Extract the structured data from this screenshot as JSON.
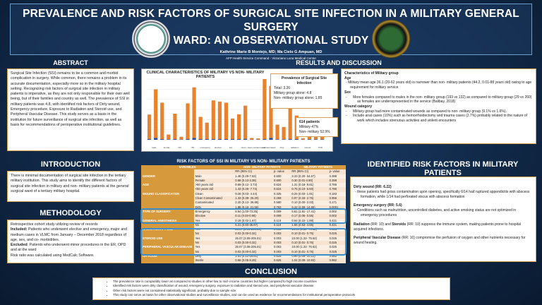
{
  "header": {
    "title_line1": "PREVALENCE AND RISK FACTORS OF SURGICAL SITE INFECTION IN A MILITARY GENERAL SURGERY",
    "title_line2": "WARD: AN OBSERVATIONAL STUDY",
    "authors": "Kathrine Marie B Montejo, MD; Ma Cielo G Ampuan, MD",
    "affiliation": "AFP Health Service Command - Victoriano Luna Medical Center"
  },
  "abstract": {
    "heading": "ABSTRACT",
    "text": "Surgical Site Infection (SSI) remains to be a common and morbid complication in surgery. While common, there remains a problem in its accurate documentation, especially more so in the military hospital setting. Recognizing risk factors of surgical site infection in military patients is imperative, as they are not only responsible for their own well being, but of their families and country as well. The prevalence of SSI in military patients was 4.8, with identified risk factors of Dirty wound, Emergency procedure, Exposure to Radiation and Steroid use, and Peripheral Vascular Disease. This study serves as a basis in the institution for future surveillance of surgical site infection, as well as basis for recommendations of perioperative institutional guidelines."
  },
  "introduction": {
    "heading": "INTRODUCTION",
    "text": "There is minimal documentation of surgical site infection in the tertiary military institution. This study aims to identify the different factors of surgical site infection in military and non- military patients at the general surgical ward of a tertiary military hospital."
  },
  "methodology": {
    "heading": "METHODOLOGY",
    "line1": "Retrospective cohort study utilizing review of records",
    "included_label": "Included:",
    "included": " Patients who underwent elective and emergency, major and medium cases in VLMC from January – December 2018 regardless of age, sex, and co- morbidities.",
    "excluded_label": "Excluded",
    "excluded": ": Patients who underwent minor procedures in the ER, OPD and at the ward",
    "line4": "Risk ratio was calculated using MedCalc Software."
  },
  "results": {
    "heading": "RESULTS AND DISCUSSION"
  },
  "chart_data": {
    "type": "bar",
    "stacked": true,
    "title": "CLINICAL CHARACTERISTICS OF MILITARY VS NON- MILITARY PATIENTS",
    "colors": {
      "ssi": "#2a4d9a",
      "no_ssi": "#e8822c"
    },
    "categories": [
      "male",
      "female",
      "<50",
      ">50",
      "emergency",
      "elective",
      "GA",
      "clean",
      "clean contaminated",
      "contaminated",
      "dirty",
      "radiation",
      "steroid",
      "PVD"
    ],
    "values_total": [
      110,
      220,
      162,
      23,
      114,
      13,
      159,
      229,
      100,
      75,
      172,
      167,
      162,
      93,
      111,
      149,
      8,
      6,
      265,
      235,
      66,
      56,
      164,
      106,
      7,
      47,
      33,
      33
    ],
    "values_ssi": [
      3,
      8,
      3,
      2,
      3,
      1,
      3,
      8,
      3,
      3,
      3,
      3,
      3,
      3,
      3,
      4,
      1,
      1,
      3,
      8,
      2,
      2,
      3,
      3,
      1,
      2,
      2,
      2
    ]
  },
  "prevalence": {
    "title": "Prevalence of Surgical Site Infection",
    "total": "Total: 3.26",
    "military": "Military group alone: 4.8",
    "nonmilitary": "Non- military group alone: 1.85"
  },
  "patients": {
    "title": "614 patients",
    "military": "Military 47%",
    "nonmilitary": "Non- military 52.9%"
  },
  "characteristics": {
    "title": "Characteristics of Military group",
    "age_h": "Age",
    "age": "Military mean age 36.1 (20-62 years old) is narrower than non- military patients (44.2, 0.01-88 years old) owing to age requirement for military service",
    "sex_h": "Sex",
    "sex": "More females compared to males in the non- military group (193 vs 132) as compared to military group (29 vs 260) as females are underrepresented in the service (Balibay, 2018)",
    "wound_h": "Wound category",
    "wound1": "Military group had more contaminated wounds as compared to non- military group (9.1% vs 1.6%).",
    "wound2": "Include anal cases (10%) such as hemorrhoidectomy and trauma cases (2.7%) probably related to the nature of work which includes strenuous activities and violent encounters"
  },
  "table": {
    "title": "RISK FACTORS OF SSI IN MILITARY VS NON- MILITARY PATIENTS",
    "col_variables": "VARIABLES",
    "col_nonmil": "NON- MILITARY PATIENTS",
    "col_mil": "MILITARY PATIENTS",
    "rr": "RR (95% CI)",
    "p": "p- value",
    "rows": [
      {
        "group": "GENDER",
        "var": "Male",
        "nrr": "1.46 (0.29-7.53)",
        "np": "0.600",
        "mrr": "3.33 (0.20- 54.67)",
        "mp": "0.398"
      },
      {
        "group": "",
        "var": "Female",
        "nrr": "0.68 (0.13-3.39)",
        "np": "0.600",
        "mrr": "0.30 (0.01-4.90)",
        "mp": "0.398"
      },
      {
        "group": "AGE",
        "var": ">50 years old",
        "nrr": "0.69 (0.12- 3.73)",
        "np": "0.624",
        "mrr": "1.31 (0.18- 9.61)",
        "mp": "0.786"
      },
      {
        "group": "",
        "var": "<50 years old",
        "nrr": "1.43 (0.26- 7.74)",
        "np": "0.624",
        "mrr": "0.76 (0.10- 5.60)",
        "mp": "0.786"
      },
      {
        "group": "WOUND CLASSIFICATION",
        "var": "Clean",
        "nrr": "0.28 (0.03- 4.44)",
        "np": "0.325",
        "mrr": "0.25 (0.03- 1.91)",
        "mp": "0.183"
      },
      {
        "group": "",
        "var": "Clean Contaminated",
        "nrr": "1.33 (0.39- 26.20)",
        "np": "0.269",
        "mrr": "0.97 (0.33- 2.75)",
        "mp": "0.956"
      },
      {
        "group": "",
        "var": "Contaminated",
        "nrr": "2.20 (0.13- 36.85)",
        "np": "0.580",
        "mrr": "0.10 (0.00- 2.03)",
        "mp": "0.171"
      },
      {
        "group": "",
        "var": "Dirty",
        "nrr": "1.88 (0.16- 21.56)",
        "np": "0.763",
        "mrr": "6.22 (2.59- 14.88)",
        "mp": "0.0001"
      },
      {
        "group": "TYPE OF SURGERY",
        "var": "Emergency",
        "nrr": "8.54 (1.00-73.25)",
        "np": "0.009",
        "mrr": "5.61 (1.81- 17.41)",
        "mp": "0.002"
      },
      {
        "group": "",
        "var": "Elective",
        "nrr": "0.11 (0.03-0.99)",
        "np": "0.009",
        "mrr": "0.17 (0.05- 0.55)",
        "mp": "0.002"
      },
      {
        "group": "GENERAL ANESTHESIA",
        "var": "Yes",
        "nrr": "0.19 (0.02-1.67)",
        "np": "0.110",
        "mrr": "0.64 (0.22- 1.89)",
        "mp": "0.421"
      },
      {
        "group": "",
        "var": "No",
        "nrr": "5.21 (0.60-45.67)",
        "np": "0.110",
        "mrr": "1.55 (0.53- 4.55)",
        "mp": "0.421"
      },
      {
        "group": "RADIOTHERAPY USE",
        "var": "Yes",
        "nrr": "25.07 (3.06-205.01)",
        "np": "0.003",
        "mrr": "10.00 (1.32- 75.62)",
        "mp": "0.025"
      },
      {
        "group": "",
        "var": "No",
        "nrr": "0.03 (0.00-0.32)",
        "np": "0.003",
        "mrr": "0.10 (0.01- 0.75)",
        "mp": "0.025"
      },
      {
        "group": "STEROID USE",
        "var": "Yes",
        "nrr": "25.07 (3.06-205.01)",
        "np": "0.003",
        "mrr": "10.00 (1.32- 75.62)",
        "mp": "0.025"
      },
      {
        "group": "",
        "var": "No",
        "nrr": "0.03 (0.00-0.32)",
        "np": "0.003",
        "mrr": "0.10 (0.01- 0.75)",
        "mp": "0.025"
      },
      {
        "group": "PERIPHERAL VASCULAR DISEASE",
        "var": "Yes",
        "nrr": "25.07 (3.06-205.01)",
        "np": "0.003",
        "mrr": "10.00 (1.32- 75.62)",
        "mp": "0.025"
      },
      {
        "group": "",
        "var": "No",
        "nrr": "0.03 (0.00-0.32)",
        "np": "0.003",
        "mrr": "0.10 (0.01- 0.75)",
        "mp": "0.025"
      },
      {
        "group": "OR ROOM",
        "var": "Dirty",
        "nrr": "1.51 (0.12-18.81)",
        "np": "0.625",
        "mrr": "0.96 (0.09- 10.12)",
        "mp": "0.982"
      },
      {
        "group": "",
        "var": "Sterile",
        "nrr": "0.66 (0.05-8.29)",
        "np": "0.625",
        "mrr": "1.04 (0.09- 10.93)",
        "mp": "0.982"
      }
    ]
  },
  "identified": {
    "heading": "IDENTIFIED RISK FACTORS IN MILITARY PATIENTS",
    "dirty_h": "Dirty wound (RR: 6.22)",
    "dirty": "these patients had gross contamination upon opening, specifically 6/14 had ruptured appendicitis with abscess formation, while 1/14 had perforated viscus with abscess formation",
    "emerg_h": "Emergency surgery (RR: 5.6)",
    "emerg": "Conditions such as malnutrition, uncontrolled diabetes, and active smoking status are not optimized in emergency procedures",
    "rad_h": "Radiation",
    "rad_mid": " (RR: 10) and ",
    "ster_h": "Steroids",
    "rad": " (RR: 10) suppress the immune system, making patients prone to hospital acquired infections.",
    "pvd_h": "Peripheral Vascular Disease",
    "pvd": " (RR: 10) compromise the perfusion of oxygen and other nutrients necessary for wound healing."
  },
  "conclusion": {
    "heading": "CONCLUSION",
    "items": [
      "The prevalence rate is comparably lower as compared to studies in other low to mid- income countries but higher compared to high income countries",
      "Identified risk factors were dirty classification of wound, emergency surgery, exposure to radiation and steroid use, and peripheral vascular disease",
      "Other risk factors were not considered statistically significant, probably due to sample size",
      "This study can serve as basis for other observational studies and surveillance studies, and can be used as evidence for recommendations for institutional perioperative protocols"
    ]
  }
}
